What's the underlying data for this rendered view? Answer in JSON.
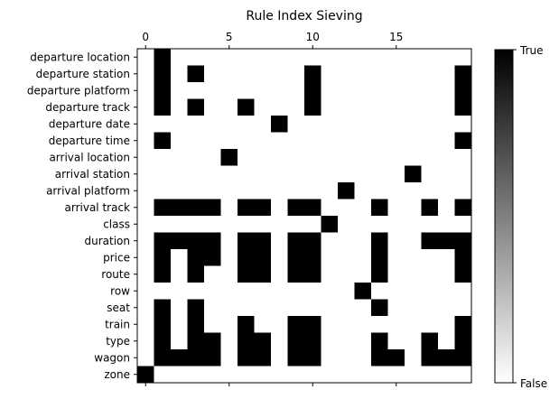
{
  "chart_data": {
    "type": "heatmap",
    "title": "Rule Index Sieving",
    "xlabel": "",
    "ylabel": "",
    "x_axis_position": "top",
    "x_ticks": [
      0,
      5,
      10,
      15
    ],
    "x_range": [
      0,
      19
    ],
    "rows": [
      "departure location",
      "departure station",
      "departure platform",
      "departure track",
      "departure date",
      "departure time",
      "arrival location",
      "arrival station",
      "arrival platform",
      "arrival track",
      "class",
      "duration",
      "price",
      "route",
      "row",
      "seat",
      "train",
      "type",
      "wagon",
      "zone"
    ],
    "matrix": [
      [
        0,
        1,
        0,
        0,
        0,
        0,
        0,
        0,
        0,
        0,
        0,
        0,
        0,
        0,
        0,
        0,
        0,
        0,
        0,
        0
      ],
      [
        0,
        1,
        0,
        1,
        0,
        0,
        0,
        0,
        0,
        0,
        1,
        0,
        0,
        0,
        0,
        0,
        0,
        0,
        0,
        1
      ],
      [
        0,
        1,
        0,
        0,
        0,
        0,
        0,
        0,
        0,
        0,
        1,
        0,
        0,
        0,
        0,
        0,
        0,
        0,
        0,
        1
      ],
      [
        0,
        1,
        0,
        1,
        0,
        0,
        1,
        0,
        0,
        0,
        1,
        0,
        0,
        0,
        0,
        0,
        0,
        0,
        0,
        1
      ],
      [
        0,
        0,
        0,
        0,
        0,
        0,
        0,
        0,
        1,
        0,
        0,
        0,
        0,
        0,
        0,
        0,
        0,
        0,
        0,
        0
      ],
      [
        0,
        1,
        0,
        0,
        0,
        0,
        0,
        0,
        0,
        0,
        0,
        0,
        0,
        0,
        0,
        0,
        0,
        0,
        0,
        1
      ],
      [
        0,
        0,
        0,
        0,
        0,
        1,
        0,
        0,
        0,
        0,
        0,
        0,
        0,
        0,
        0,
        0,
        0,
        0,
        0,
        0
      ],
      [
        0,
        0,
        0,
        0,
        0,
        0,
        0,
        0,
        0,
        0,
        0,
        0,
        0,
        0,
        0,
        0,
        1,
        0,
        0,
        0
      ],
      [
        0,
        0,
        0,
        0,
        0,
        0,
        0,
        0,
        0,
        0,
        0,
        0,
        1,
        0,
        0,
        0,
        0,
        0,
        0,
        0
      ],
      [
        0,
        1,
        1,
        1,
        1,
        0,
        1,
        1,
        0,
        1,
        1,
        0,
        0,
        0,
        1,
        0,
        0,
        1,
        0,
        1
      ],
      [
        0,
        0,
        0,
        0,
        0,
        0,
        0,
        0,
        0,
        0,
        0,
        1,
        0,
        0,
        0,
        0,
        0,
        0,
        0,
        0
      ],
      [
        0,
        1,
        1,
        1,
        1,
        0,
        1,
        1,
        0,
        1,
        1,
        0,
        0,
        0,
        1,
        0,
        0,
        1,
        1,
        1
      ],
      [
        0,
        1,
        0,
        1,
        1,
        0,
        1,
        1,
        0,
        1,
        1,
        0,
        0,
        0,
        1,
        0,
        0,
        0,
        0,
        1
      ],
      [
        0,
        1,
        0,
        1,
        0,
        0,
        1,
        1,
        0,
        1,
        1,
        0,
        0,
        0,
        1,
        0,
        0,
        0,
        0,
        1
      ],
      [
        0,
        0,
        0,
        0,
        0,
        0,
        0,
        0,
        0,
        0,
        0,
        0,
        0,
        1,
        0,
        0,
        0,
        0,
        0,
        0
      ],
      [
        0,
        1,
        0,
        1,
        0,
        0,
        0,
        0,
        0,
        0,
        0,
        0,
        0,
        0,
        1,
        0,
        0,
        0,
        0,
        0
      ],
      [
        0,
        1,
        0,
        1,
        0,
        0,
        1,
        0,
        0,
        1,
        1,
        0,
        0,
        0,
        0,
        0,
        0,
        0,
        0,
        1
      ],
      [
        0,
        1,
        0,
        1,
        1,
        0,
        1,
        1,
        0,
        1,
        1,
        0,
        0,
        0,
        1,
        0,
        0,
        1,
        0,
        1
      ],
      [
        0,
        1,
        1,
        1,
        1,
        0,
        1,
        1,
        0,
        1,
        1,
        0,
        0,
        0,
        1,
        1,
        0,
        1,
        1,
        1
      ],
      [
        1,
        0,
        0,
        0,
        0,
        0,
        0,
        0,
        0,
        0,
        0,
        0,
        0,
        0,
        0,
        0,
        0,
        0,
        0,
        0
      ]
    ],
    "colorbar": {
      "max_label": "True",
      "min_label": "False",
      "high_color": "#000000",
      "low_color": "#ffffff"
    },
    "grid": false
  }
}
